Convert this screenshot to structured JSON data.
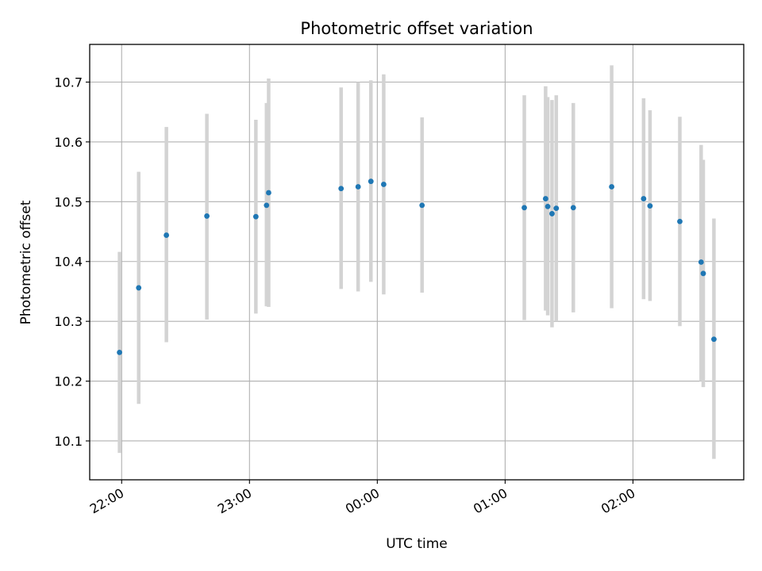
{
  "chart_data": {
    "type": "scatter",
    "title": "Photometric offset variation",
    "xlabel": "UTC time",
    "ylabel": "Photometric offset",
    "x_ticks": [
      "22:00",
      "23:00",
      "00:00",
      "01:00",
      "02:00"
    ],
    "x_tick_times": [
      "22:00",
      "23:00",
      "24:00",
      "25:00",
      "26:00"
    ],
    "y_ticks": [
      10.1,
      10.2,
      10.3,
      10.4,
      10.5,
      10.6,
      10.7
    ],
    "xlim": [
      "21:45",
      "26:52"
    ],
    "ylim": [
      10.035,
      10.763
    ],
    "grid": true,
    "colors": {
      "point": "#1f77b4",
      "errorbar": "#d3d3d3",
      "grid": "#b0b0b0"
    },
    "points": [
      {
        "t": "21:59",
        "y": 10.248,
        "lo": 10.08,
        "hi": 10.416
      },
      {
        "t": "22:08",
        "y": 10.356,
        "lo": 10.162,
        "hi": 10.55
      },
      {
        "t": "22:21",
        "y": 10.444,
        "lo": 10.265,
        "hi": 10.625
      },
      {
        "t": "22:40",
        "y": 10.476,
        "lo": 10.303,
        "hi": 10.647
      },
      {
        "t": "23:03",
        "y": 10.475,
        "lo": 10.313,
        "hi": 10.637
      },
      {
        "t": "23:08",
        "y": 10.494,
        "lo": 10.325,
        "hi": 10.665
      },
      {
        "t": "23:09",
        "y": 10.515,
        "lo": 10.324,
        "hi": 10.706
      },
      {
        "t": "23:43",
        "y": 10.522,
        "lo": 10.354,
        "hi": 10.691
      },
      {
        "t": "23:51",
        "y": 10.525,
        "lo": 10.35,
        "hi": 10.7
      },
      {
        "t": "23:57",
        "y": 10.534,
        "lo": 10.366,
        "hi": 10.703
      },
      {
        "t": "24:03",
        "y": 10.529,
        "lo": 10.345,
        "hi": 10.713
      },
      {
        "t": "24:21",
        "y": 10.494,
        "lo": 10.348,
        "hi": 10.641
      },
      {
        "t": "25:09",
        "y": 10.49,
        "lo": 10.302,
        "hi": 10.678
      },
      {
        "t": "25:19",
        "y": 10.505,
        "lo": 10.318,
        "hi": 10.693
      },
      {
        "t": "25:20",
        "y": 10.492,
        "lo": 10.31,
        "hi": 10.675
      },
      {
        "t": "25:22",
        "y": 10.48,
        "lo": 10.29,
        "hi": 10.67
      },
      {
        "t": "25:24",
        "y": 10.489,
        "lo": 10.3,
        "hi": 10.678
      },
      {
        "t": "25:32",
        "y": 10.49,
        "lo": 10.315,
        "hi": 10.665
      },
      {
        "t": "25:50",
        "y": 10.525,
        "lo": 10.322,
        "hi": 10.728
      },
      {
        "t": "26:05",
        "y": 10.505,
        "lo": 10.337,
        "hi": 10.673
      },
      {
        "t": "26:08",
        "y": 10.493,
        "lo": 10.334,
        "hi": 10.653
      },
      {
        "t": "26:22",
        "y": 10.467,
        "lo": 10.292,
        "hi": 10.642
      },
      {
        "t": "26:32",
        "y": 10.399,
        "lo": 10.2,
        "hi": 10.595
      },
      {
        "t": "26:33",
        "y": 10.38,
        "lo": 10.19,
        "hi": 10.57
      },
      {
        "t": "26:38",
        "y": 10.27,
        "lo": 10.07,
        "hi": 10.472
      }
    ]
  }
}
